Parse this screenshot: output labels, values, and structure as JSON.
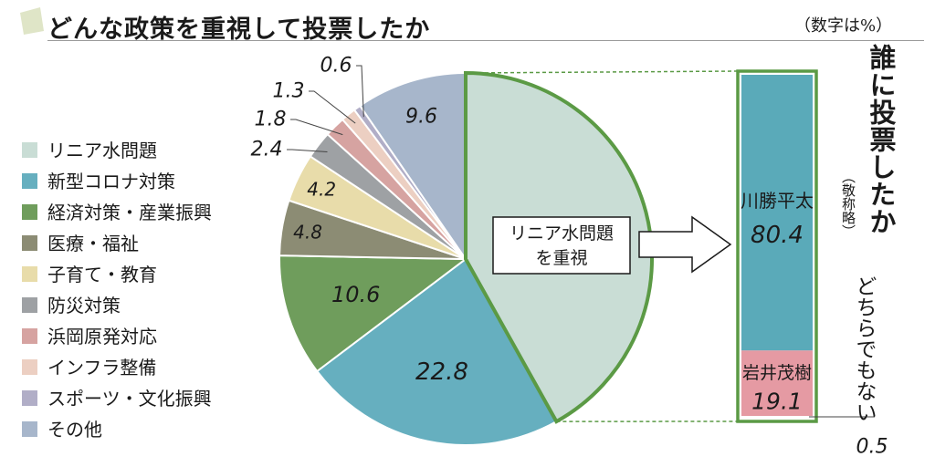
{
  "title": "どんな政策を重視して投票したか",
  "unit_note": "（数字は%）",
  "colors": {
    "linear": "#c9ddd5",
    "corona": "#66afbf",
    "economy": "#6f9d5c",
    "medical": "#8c8c74",
    "child": "#e8dcaa",
    "disaster": "#9ea1a4",
    "hamaoka": "#d6a3a1",
    "infra": "#eccfc2",
    "sports": "#b1aec7",
    "other": "#a7b6cb",
    "accent": "#5b9a45",
    "kawakatsu": "#5aaab9",
    "iwai": "#e59aa3"
  },
  "chart_data": [
    {
      "type": "pie",
      "title": "どんな政策を重視して投票したか",
      "unit": "%",
      "slices": [
        {
          "label": "リニア水問題",
          "value": 41.9,
          "color": "#c9ddd5"
        },
        {
          "label": "新型コロナ対策",
          "value": 22.8,
          "color": "#66afbf"
        },
        {
          "label": "経済対策・産業振興",
          "value": 10.6,
          "color": "#6f9d5c"
        },
        {
          "label": "医療・福祉",
          "value": 4.8,
          "color": "#8c8c74"
        },
        {
          "label": "子育て・教育",
          "value": 4.2,
          "color": "#e8dcaa"
        },
        {
          "label": "防災対策",
          "value": 2.4,
          "color": "#9ea1a4"
        },
        {
          "label": "浜岡原発対応",
          "value": 1.8,
          "color": "#d6a3a1"
        },
        {
          "label": "インフラ整備",
          "value": 1.3,
          "color": "#eccfc2"
        },
        {
          "label": "スポーツ・文化振興",
          "value": 0.6,
          "color": "#b1aec7"
        },
        {
          "label": "その他",
          "value": 9.6,
          "color": "#a7b6cb"
        }
      ],
      "legend_position": "left"
    },
    {
      "type": "bar",
      "title": "誰に投票したか",
      "subtitle": "（敬称略）",
      "subset_label": "リニア水問題を重視",
      "stacked": true,
      "unit": "%",
      "segments": [
        {
          "label": "川勝平太",
          "value": 80.4,
          "color": "#5aaab9"
        },
        {
          "label": "岩井茂樹",
          "value": 19.1,
          "color": "#e59aa3"
        },
        {
          "label": "どちらでもない",
          "value": 0.5,
          "color": "#ffffff"
        }
      ]
    }
  ],
  "callout": {
    "line1": "リニア水問題",
    "line2": "を重視"
  },
  "vote": {
    "title": "誰に投票したか",
    "note": "（敬称略）",
    "neither_label": "どちらでもない"
  }
}
